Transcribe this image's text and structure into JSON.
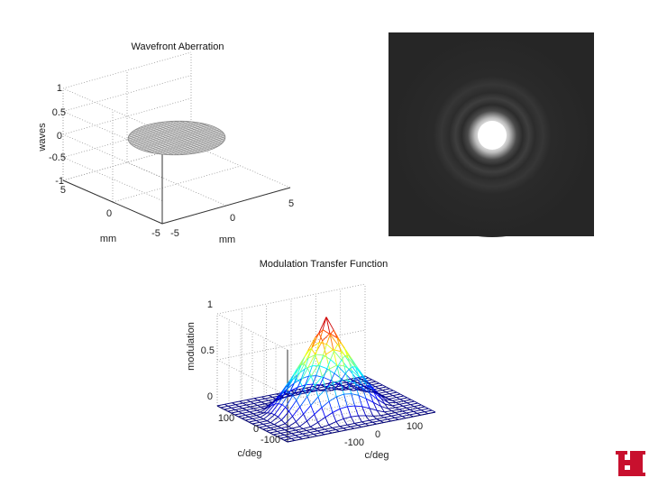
{
  "charts": {
    "wavefront": {
      "title": "Wavefront Aberration",
      "zlabel": "waves",
      "xlabel": "mm",
      "ylabel": "mm",
      "zticks": [
        "1",
        "0.5",
        "0",
        "-0.5",
        "-1"
      ],
      "xticks": [
        "-5",
        "0",
        "5"
      ],
      "yticks": [
        "5",
        "0",
        "-5"
      ]
    },
    "psf": {},
    "mtf": {
      "title": "Modulation Transfer Function",
      "zlabel": "modulation",
      "xlabel": "c/deg",
      "ylabel": "c/deg",
      "zticks": [
        "1",
        "0.5",
        "0"
      ],
      "xticks": [
        "-100",
        "0",
        "100"
      ],
      "yticks": [
        "100",
        "0",
        "-100"
      ]
    }
  },
  "logo": {
    "text": "UH",
    "color": "#c8102e"
  },
  "chart_data": [
    {
      "type": "surface",
      "title": "Wavefront Aberration",
      "xlabel": "mm",
      "ylabel": "mm",
      "zlabel": "waves",
      "xlim": [
        -5,
        5
      ],
      "ylim": [
        -5,
        5
      ],
      "zlim": [
        -1,
        1
      ],
      "grid": true,
      "surface": "flat disk at z = 0 within pupil radius 3 mm",
      "pupil_radius": 3,
      "z_value": 0
    },
    {
      "type": "heatmap",
      "colormap": "gray",
      "description_values": {
        "central_peak": 1,
        "rings": 2
      }
    },
    {
      "type": "surface",
      "title": "Modulation Transfer Function",
      "xlabel": "c/deg",
      "ylabel": "c/deg",
      "zlabel": "modulation",
      "xlim": [
        -150,
        150
      ],
      "ylim": [
        -150,
        150
      ],
      "zlim": [
        0,
        1
      ],
      "grid": true,
      "peak": {
        "x": 0,
        "y": 0,
        "z": 1
      },
      "cutoff": 120,
      "colormap": "jet"
    }
  ]
}
